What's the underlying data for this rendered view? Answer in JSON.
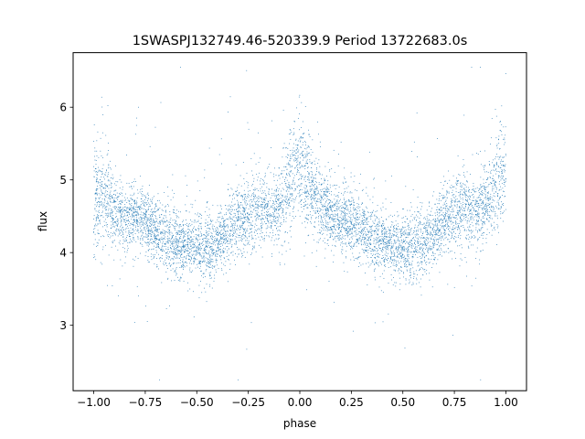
{
  "chart_data": {
    "type": "scatter",
    "title": "1SWASPJ132749.46-520339.9 Period 13722683.0s",
    "xlabel": "phase",
    "ylabel": "flux",
    "xlim": [
      -1.1,
      1.1
    ],
    "ylim": [
      2.1,
      6.75
    ],
    "xticks": [
      -1.0,
      -0.75,
      -0.5,
      -0.25,
      0.0,
      0.25,
      0.5,
      0.75,
      1.0
    ],
    "xtick_labels": [
      "−1.00",
      "−0.75",
      "−0.50",
      "−0.25",
      "0.00",
      "0.25",
      "0.50",
      "0.75",
      "1.00"
    ],
    "yticks": [
      3,
      4,
      5,
      6
    ],
    "ytick_labels": [
      "3",
      "4",
      "5",
      "6"
    ],
    "grid": false,
    "marker_color": "#1f77b4",
    "series": [
      {
        "profile": {
          "phase": [
            -1.0,
            -0.95,
            -0.9,
            -0.85,
            -0.8,
            -0.75,
            -0.7,
            -0.65,
            -0.6,
            -0.55,
            -0.5,
            -0.45,
            -0.4,
            -0.35,
            -0.3,
            -0.25,
            -0.2,
            -0.15,
            -0.1,
            -0.05,
            0.0,
            0.05,
            0.1,
            0.15,
            0.2,
            0.25,
            0.3,
            0.35,
            0.4,
            0.45,
            0.5,
            0.55,
            0.6,
            0.65,
            0.7,
            0.75,
            0.8,
            0.85,
            0.9,
            0.95,
            1.0
          ],
          "flux_median": [
            4.75,
            4.8,
            4.6,
            4.45,
            4.5,
            4.45,
            4.3,
            4.2,
            4.15,
            4.1,
            4.1,
            4.05,
            4.15,
            4.3,
            4.45,
            4.55,
            4.6,
            4.55,
            4.65,
            4.95,
            5.2,
            4.9,
            4.7,
            4.55,
            4.45,
            4.4,
            4.3,
            4.2,
            4.15,
            4.1,
            4.1,
            4.05,
            4.15,
            4.3,
            4.45,
            4.55,
            4.6,
            4.55,
            4.65,
            4.95,
            5.2
          ],
          "flux_spread": [
            0.5,
            0.45,
            0.35,
            0.3,
            0.3,
            0.3,
            0.3,
            0.3,
            0.3,
            0.3,
            0.3,
            0.35,
            0.3,
            0.3,
            0.3,
            0.35,
            0.35,
            0.3,
            0.35,
            0.45,
            0.5,
            0.45,
            0.35,
            0.3,
            0.3,
            0.3,
            0.3,
            0.3,
            0.3,
            0.3,
            0.3,
            0.35,
            0.3,
            0.3,
            0.3,
            0.35,
            0.35,
            0.3,
            0.35,
            0.45,
            0.5
          ]
        }
      }
    ]
  }
}
